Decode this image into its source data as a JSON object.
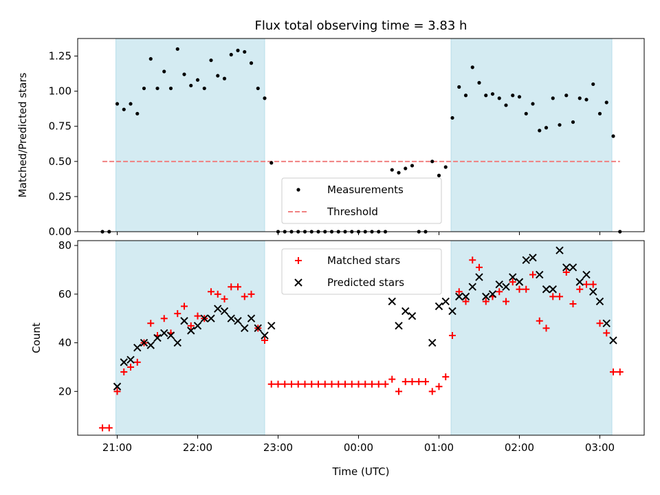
{
  "chart_data": [
    {
      "type": "scatter",
      "title": "Flux total observing time = 3.83 h",
      "xlabel": "",
      "ylabel": "Matched/Predicted stars",
      "ylim": [
        0,
        1.375
      ],
      "x_ticks": [
        "21:00",
        "22:00",
        "23:00",
        "00:00",
        "01:00",
        "02:00",
        "03:00"
      ],
      "y_ticks": [
        "0.00",
        "0.25",
        "0.50",
        "0.75",
        "1.00",
        "1.25"
      ],
      "y_tick_values": [
        0,
        0.25,
        0.5,
        0.75,
        1.0,
        1.25
      ],
      "shaded_spans": [
        [
          "20:59",
          "22:50"
        ],
        [
          "01:09",
          "03:09"
        ]
      ],
      "threshold": {
        "name": "Threshold",
        "value": 0.5,
        "x_range": [
          "20:49",
          "03:15"
        ],
        "color": "#f08080"
      },
      "legend": {
        "position": "bottom-center",
        "entries": [
          "Measurements",
          "Threshold"
        ]
      },
      "series": [
        {
          "name": "Measurements",
          "marker": "dot",
          "color": "#000000",
          "x": [
            "20:49",
            "20:54",
            "21:00",
            "21:05",
            "21:10",
            "21:15",
            "21:20",
            "21:25",
            "21:30",
            "21:35",
            "21:40",
            "21:45",
            "21:50",
            "21:55",
            "22:00",
            "22:05",
            "22:10",
            "22:15",
            "22:20",
            "22:25",
            "22:30",
            "22:35",
            "22:40",
            "22:45",
            "22:50",
            "22:55",
            "23:00",
            "23:05",
            "23:10",
            "23:15",
            "23:20",
            "23:25",
            "23:30",
            "23:35",
            "23:40",
            "23:45",
            "23:50",
            "23:55",
            "00:00",
            "00:05",
            "00:10",
            "00:15",
            "00:20",
            "00:25",
            "00:30",
            "00:35",
            "00:40",
            "00:45",
            "00:50",
            "00:55",
            "01:00",
            "01:05",
            "01:10",
            "01:15",
            "01:20",
            "01:25",
            "01:30",
            "01:35",
            "01:40",
            "01:45",
            "01:50",
            "01:55",
            "02:00",
            "02:05",
            "02:10",
            "02:15",
            "02:20",
            "02:25",
            "02:30",
            "02:35",
            "02:40",
            "02:45",
            "02:50",
            "02:55",
            "03:00",
            "03:05",
            "03:10",
            "03:15"
          ],
          "y": [
            0.0,
            0.0,
            0.91,
            0.87,
            0.91,
            0.84,
            1.02,
            1.23,
            1.02,
            1.14,
            1.02,
            1.3,
            1.12,
            1.04,
            1.08,
            1.02,
            1.22,
            1.11,
            1.09,
            1.26,
            1.29,
            1.28,
            1.2,
            1.02,
            0.95,
            0.49,
            0.0,
            0.0,
            0.0,
            0.0,
            0.0,
            0.0,
            0.0,
            0.0,
            0.0,
            0.0,
            0.0,
            0.0,
            0.0,
            0.0,
            0.0,
            0.0,
            0.0,
            0.44,
            0.42,
            0.45,
            0.47,
            0.0,
            0.0,
            0.5,
            0.4,
            0.46,
            0.81,
            1.03,
            0.97,
            1.17,
            1.06,
            0.97,
            0.98,
            0.95,
            0.9,
            0.97,
            0.96,
            0.84,
            0.91,
            0.72,
            0.74,
            0.95,
            0.76,
            0.97,
            0.78,
            0.95,
            0.94,
            1.05,
            0.84,
            0.92,
            0.68,
            0.0
          ]
        }
      ]
    },
    {
      "type": "scatter",
      "title": "",
      "xlabel": "Time (UTC)",
      "ylabel": "Count",
      "ylim": [
        2,
        82
      ],
      "x_ticks": [
        "21:00",
        "22:00",
        "23:00",
        "00:00",
        "01:00",
        "02:00",
        "03:00"
      ],
      "y_ticks": [
        "20",
        "40",
        "60",
        "80"
      ],
      "y_tick_values": [
        20,
        40,
        60,
        80
      ],
      "shaded_spans": [
        [
          "20:59",
          "22:50"
        ],
        [
          "01:09",
          "03:09"
        ]
      ],
      "legend": {
        "position": "top-center",
        "entries": [
          "Matched stars",
          "Predicted stars"
        ]
      },
      "series": [
        {
          "name": "Matched stars",
          "marker": "plus",
          "color": "#ff0000",
          "x": [
            "20:49",
            "20:54",
            "21:00",
            "21:05",
            "21:10",
            "21:15",
            "21:20",
            "21:25",
            "21:30",
            "21:35",
            "21:40",
            "21:45",
            "21:50",
            "21:55",
            "22:00",
            "22:05",
            "22:10",
            "22:15",
            "22:20",
            "22:25",
            "22:30",
            "22:35",
            "22:40",
            "22:45",
            "22:50",
            "22:55",
            "23:00",
            "23:05",
            "23:10",
            "23:15",
            "23:20",
            "23:25",
            "23:30",
            "23:35",
            "23:40",
            "23:45",
            "23:50",
            "23:55",
            "00:00",
            "00:05",
            "00:10",
            "00:15",
            "00:20",
            "00:25",
            "00:30",
            "00:35",
            "00:40",
            "00:45",
            "00:50",
            "00:55",
            "01:00",
            "01:05",
            "01:10",
            "01:15",
            "01:20",
            "01:25",
            "01:30",
            "01:35",
            "01:40",
            "01:45",
            "01:50",
            "01:55",
            "02:00",
            "02:05",
            "02:10",
            "02:15",
            "02:20",
            "02:25",
            "02:30",
            "02:35",
            "02:40",
            "02:45",
            "02:50",
            "02:55",
            "03:00",
            "03:05",
            "03:10",
            "03:15"
          ],
          "y": [
            5,
            5,
            20,
            28,
            30,
            32,
            40,
            48,
            43,
            50,
            44,
            52,
            55,
            47,
            51,
            50,
            61,
            60,
            58,
            63,
            63,
            59,
            60,
            46,
            41,
            23,
            23,
            23,
            23,
            23,
            23,
            23,
            23,
            23,
            23,
            23,
            23,
            23,
            23,
            23,
            23,
            23,
            23,
            25,
            20,
            24,
            24,
            24,
            24,
            20,
            22,
            26,
            43,
            61,
            57,
            74,
            71,
            57,
            59,
            61,
            57,
            65,
            62,
            62,
            68,
            49,
            46,
            59,
            59,
            69,
            56,
            62,
            64,
            64,
            48,
            44,
            28,
            28
          ]
        },
        {
          "name": "Predicted stars",
          "marker": "x",
          "color": "#000000",
          "x": [
            "21:00",
            "21:05",
            "21:10",
            "21:15",
            "21:20",
            "21:25",
            "21:30",
            "21:35",
            "21:40",
            "21:45",
            "21:50",
            "21:55",
            "22:00",
            "22:05",
            "22:10",
            "22:15",
            "22:20",
            "22:25",
            "22:30",
            "22:35",
            "22:40",
            "22:45",
            "22:50",
            "22:55",
            "00:25",
            "00:30",
            "00:35",
            "00:40",
            "00:55",
            "01:00",
            "01:05",
            "01:10",
            "01:15",
            "01:20",
            "01:25",
            "01:30",
            "01:35",
            "01:40",
            "01:45",
            "01:50",
            "01:55",
            "02:00",
            "02:05",
            "02:10",
            "02:15",
            "02:20",
            "02:25",
            "02:30",
            "02:35",
            "02:40",
            "02:45",
            "02:50",
            "02:55",
            "03:00",
            "03:05",
            "03:10"
          ],
          "y": [
            22,
            32,
            33,
            38,
            40,
            39,
            42,
            44,
            43,
            40,
            49,
            45,
            47,
            50,
            50,
            54,
            53,
            50,
            49,
            46,
            50,
            46,
            43,
            47,
            57,
            47,
            53,
            51,
            40,
            55,
            57,
            53,
            59,
            59,
            63,
            67,
            59,
            60,
            64,
            63,
            67,
            65,
            74,
            75,
            68,
            62,
            62,
            78,
            71,
            71,
            65,
            68,
            61,
            57,
            48,
            41
          ]
        }
      ]
    }
  ]
}
